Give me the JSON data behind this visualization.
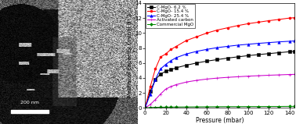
{
  "pressure_points": [
    0,
    5,
    10,
    15,
    20,
    25,
    30,
    40,
    50,
    60,
    70,
    80,
    90,
    100,
    110,
    120,
    130,
    140,
    145
  ],
  "series": {
    "C-MgO- 6.2 %": {
      "color": "#000000",
      "marker": "s",
      "values": [
        0,
        2.2,
        3.8,
        4.5,
        4.9,
        5.1,
        5.35,
        5.7,
        6.0,
        6.25,
        6.45,
        6.65,
        6.82,
        6.98,
        7.12,
        7.25,
        7.38,
        7.5,
        7.55
      ]
    },
    "C-MgO- 15.4 %": {
      "color": "#ff0000",
      "marker": "o",
      "values": [
        0,
        2.8,
        5.2,
        6.8,
        7.2,
        7.8,
        8.2,
        9.0,
        9.5,
        10.0,
        10.4,
        10.7,
        11.0,
        11.25,
        11.45,
        11.65,
        11.82,
        12.0,
        12.05
      ]
    },
    "C-MgO- 25.4 %": {
      "color": "#0000ff",
      "marker": "^",
      "values": [
        0,
        1.8,
        3.8,
        5.2,
        5.8,
        6.3,
        6.7,
        7.2,
        7.55,
        7.82,
        8.05,
        8.22,
        8.38,
        8.5,
        8.62,
        8.72,
        8.82,
        8.9,
        8.95
      ]
    },
    "Activated carbon": {
      "color": "#cc00cc",
      "marker": "+",
      "values": [
        0,
        0.45,
        1.1,
        1.85,
        2.5,
        2.85,
        3.1,
        3.45,
        3.68,
        3.85,
        3.98,
        4.08,
        4.16,
        4.24,
        4.3,
        4.36,
        4.41,
        4.46,
        4.48
      ]
    },
    "Commercial MgO": {
      "color": "#008800",
      "marker": "D",
      "values": [
        0,
        0.04,
        0.07,
        0.09,
        0.1,
        0.11,
        0.12,
        0.13,
        0.14,
        0.15,
        0.16,
        0.17,
        0.17,
        0.18,
        0.18,
        0.19,
        0.19,
        0.2,
        0.2
      ]
    }
  },
  "xlim": [
    0,
    145
  ],
  "ylim": [
    0,
    14
  ],
  "xticks": [
    0,
    20,
    40,
    60,
    80,
    100,
    120,
    140
  ],
  "yticks": [
    0,
    2,
    4,
    6,
    8,
    10,
    12,
    14
  ],
  "xlabel": "Pressure (mbar)",
  "ylabel": "Methanol capacity (mmol g⁻¹)",
  "legend_order": [
    "C-MgO- 6.2 %",
    "C-MgO- 15.4 %",
    "C-MgO- 25.4 %",
    "Activated carbon",
    "Commercial MgO"
  ],
  "img_left_dark_x": 0.48,
  "img_dark_blob_y": 0.35,
  "scalebar_text": "200 nm"
}
